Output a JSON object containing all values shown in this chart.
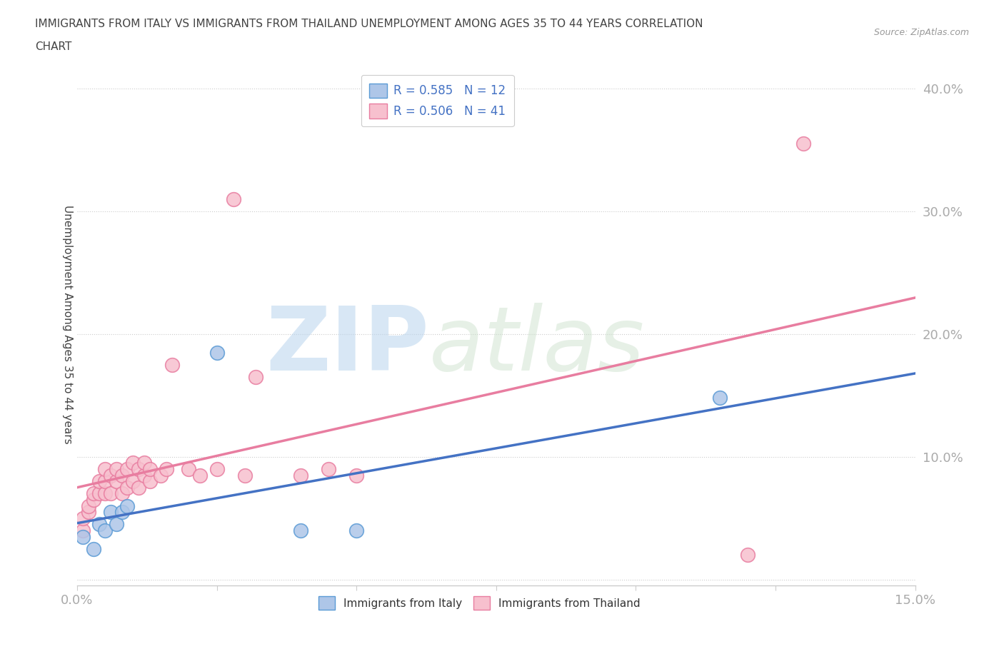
{
  "title_line1": "IMMIGRANTS FROM ITALY VS IMMIGRANTS FROM THAILAND UNEMPLOYMENT AMONG AGES 35 TO 44 YEARS CORRELATION",
  "title_line2": "CHART",
  "source": "Source: ZipAtlas.com",
  "ylabel": "Unemployment Among Ages 35 to 44 years",
  "xlim": [
    0.0,
    0.15
  ],
  "ylim": [
    -0.005,
    0.42
  ],
  "xticks": [
    0.0,
    0.025,
    0.05,
    0.075,
    0.1,
    0.125,
    0.15
  ],
  "xticklabels": [
    "0.0%",
    "",
    "",
    "",
    "",
    "",
    "15.0%"
  ],
  "yticks": [
    0.0,
    0.1,
    0.2,
    0.3,
    0.4
  ],
  "yticklabels": [
    "",
    "10.0%",
    "20.0%",
    "30.0%",
    "40.0%"
  ],
  "italy_color": "#aec6e8",
  "italy_edge_color": "#5b9bd5",
  "thailand_color": "#f7c0ce",
  "thailand_edge_color": "#e87da0",
  "italy_line_color": "#4472c4",
  "thailand_line_color": "#e87da0",
  "italy_R": 0.585,
  "italy_N": 12,
  "thailand_R": 0.506,
  "thailand_N": 41,
  "legend_label_italy": "Immigrants from Italy",
  "legend_label_thailand": "Immigrants from Thailand",
  "watermark_zip": "ZIP",
  "watermark_atlas": "atlas",
  "background_color": "#ffffff",
  "italy_x": [
    0.001,
    0.003,
    0.004,
    0.005,
    0.006,
    0.007,
    0.008,
    0.009,
    0.025,
    0.04,
    0.05,
    0.115
  ],
  "italy_y": [
    0.035,
    0.025,
    0.045,
    0.04,
    0.055,
    0.045,
    0.055,
    0.06,
    0.185,
    0.04,
    0.04,
    0.148
  ],
  "thailand_x": [
    0.001,
    0.001,
    0.002,
    0.002,
    0.003,
    0.003,
    0.004,
    0.004,
    0.005,
    0.005,
    0.005,
    0.006,
    0.006,
    0.007,
    0.007,
    0.008,
    0.008,
    0.009,
    0.009,
    0.01,
    0.01,
    0.011,
    0.011,
    0.012,
    0.012,
    0.013,
    0.013,
    0.015,
    0.016,
    0.017,
    0.02,
    0.022,
    0.025,
    0.028,
    0.03,
    0.032,
    0.04,
    0.045,
    0.05,
    0.12,
    0.13
  ],
  "thailand_y": [
    0.04,
    0.05,
    0.055,
    0.06,
    0.065,
    0.07,
    0.07,
    0.08,
    0.07,
    0.08,
    0.09,
    0.07,
    0.085,
    0.08,
    0.09,
    0.07,
    0.085,
    0.075,
    0.09,
    0.08,
    0.095,
    0.075,
    0.09,
    0.085,
    0.095,
    0.08,
    0.09,
    0.085,
    0.09,
    0.175,
    0.09,
    0.085,
    0.09,
    0.31,
    0.085,
    0.165,
    0.085,
    0.09,
    0.085,
    0.02,
    0.355
  ],
  "grid_color": "#cccccc",
  "tick_color": "#aaaaaa",
  "label_color": "#4472c4",
  "title_color": "#444444",
  "spine_color": "#cccccc"
}
